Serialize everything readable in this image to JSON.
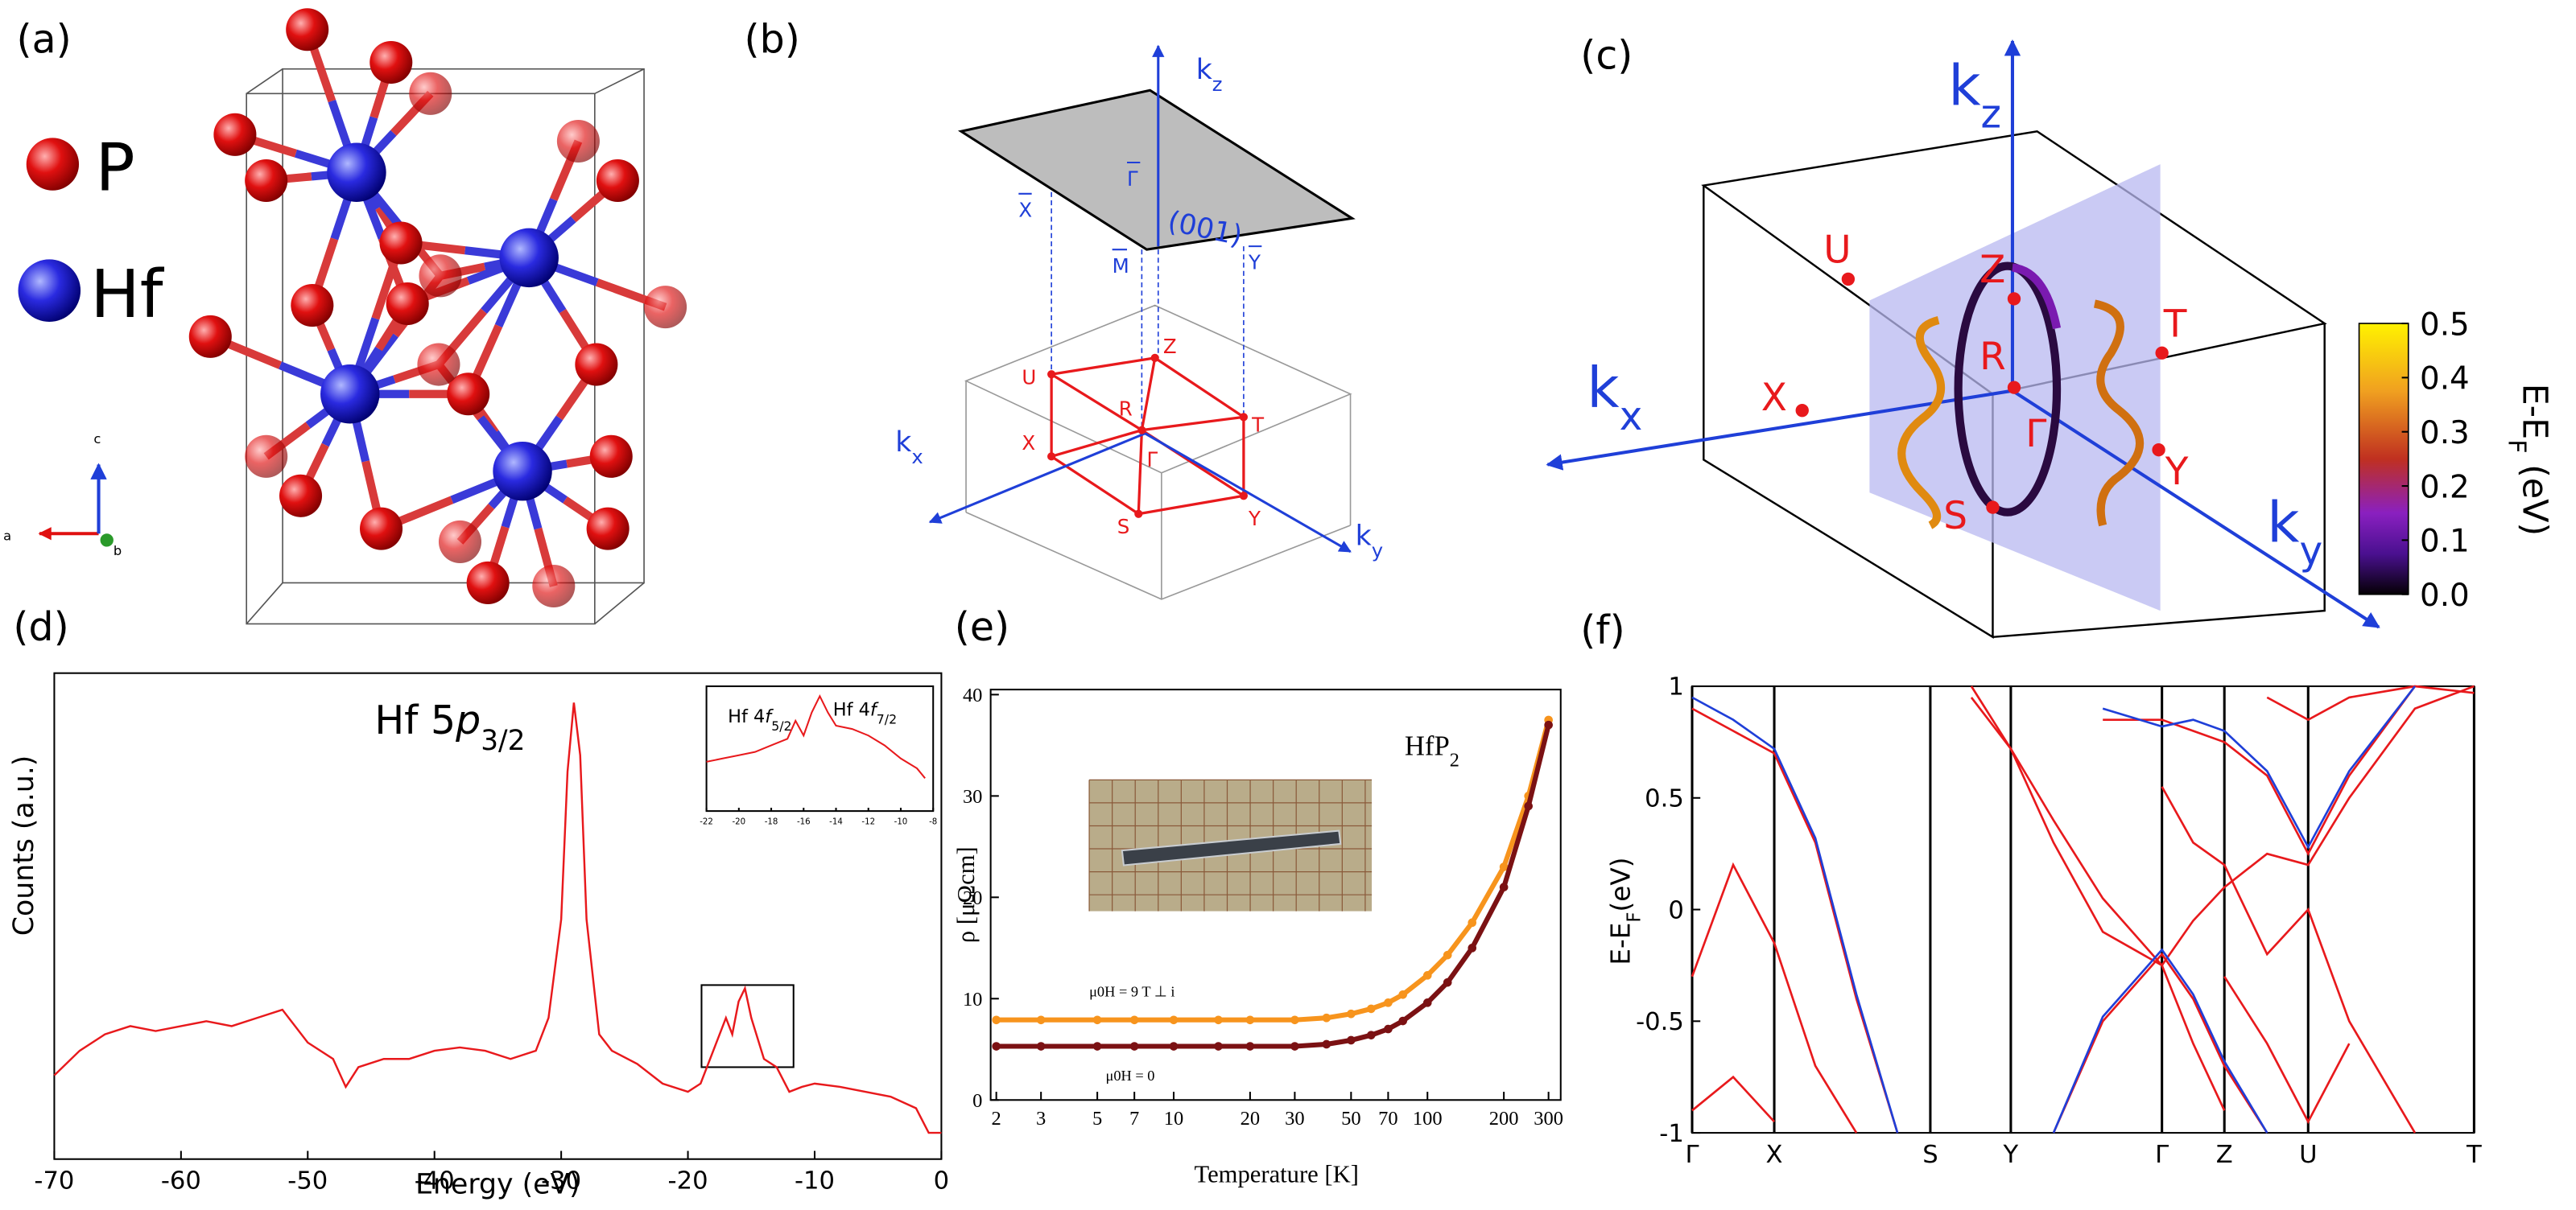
{
  "panel_labels": [
    "(a)",
    "(b)",
    "(c)",
    "(d)",
    "(e)",
    "(f)"
  ],
  "structure": {
    "legend": [
      "P",
      "Hf"
    ],
    "axes": [
      "a",
      "b",
      "c"
    ]
  },
  "brillouin_zone": {
    "surface": "(001)",
    "surface_points": [
      "Γ",
      "X",
      "M",
      "Y"
    ],
    "points": [
      "Z",
      "U",
      "R",
      "X",
      "T",
      "Γ",
      "S",
      "Y"
    ],
    "axes": [
      [
        "k",
        "x"
      ],
      [
        "k",
        "y"
      ],
      [
        "k",
        "z"
      ]
    ]
  },
  "nodal_line": {
    "points": [
      "Z",
      "U",
      "T",
      "R",
      "X",
      "Γ",
      "Y",
      "S"
    ],
    "axes": [
      [
        "k",
        "x"
      ],
      [
        "k",
        "y"
      ],
      [
        "k",
        "z"
      ]
    ],
    "colorbar": {
      "label": [
        "E-E",
        "F",
        " (eV)"
      ],
      "lim": [
        0,
        0.5
      ],
      "ticks": [
        {
          "value": 0,
          "label": "0.0"
        },
        0.1,
        0.2,
        0.3,
        0.4,
        0.5
      ]
    }
  },
  "chart_data": [
    {
      "type": "line",
      "annotation": [
        "Hf 5",
        "p",
        "3/2"
      ],
      "xlabel": "Energy (eV)",
      "ylabel": "Counts (a.u.)",
      "xlim": [
        -70,
        0
      ],
      "xticks": [
        -70,
        -60,
        -50,
        -40,
        -30,
        -20,
        -10,
        0
      ],
      "ylim": [
        0,
        296
      ],
      "x": [
        -70,
        -68,
        -66,
        -64,
        -62,
        -60,
        -58,
        -56,
        -54,
        -52,
        -50,
        -48,
        -47,
        -46,
        -44,
        -42,
        -40,
        -38,
        -36,
        -34,
        -32,
        -31,
        -30,
        -29.5,
        -29,
        -28.5,
        -28,
        -27,
        -26,
        -24,
        -22,
        -20,
        -19,
        -18,
        -17,
        -16.5,
        -16,
        -15.5,
        -15,
        -14,
        -13,
        -12,
        -11,
        -10,
        -8,
        -6,
        -4,
        -2,
        -1,
        0
      ],
      "series": [
        {
          "color": "#e8191c",
          "values": [
            51,
            66,
            76,
            81,
            78,
            81,
            84,
            81,
            86,
            91,
            71,
            61,
            44,
            56,
            61,
            61,
            66,
            68,
            66,
            61,
            66,
            86,
            146,
            236,
            278,
            246,
            146,
            76,
            66,
            58,
            46,
            41,
            46,
            66,
            86,
            76,
            96,
            104,
            86,
            61,
            56,
            41,
            44,
            46,
            44,
            41,
            38,
            31,
            16,
            16
          ]
        }
      ]
    },
    {
      "type": "line",
      "annotations": [
        [
          "Hf 4",
          "f",
          "5/2"
        ],
        [
          "Hf 4",
          "f",
          "7/2"
        ]
      ],
      "xlim": [
        -22,
        -8
      ],
      "xticks": [
        -22,
        -20,
        -18,
        -16,
        -14,
        -12,
        -10,
        -8
      ],
      "ylim": [
        0,
        76
      ],
      "x": [
        -22,
        -21,
        -20,
        -19,
        -18,
        -17,
        -16.5,
        -16,
        -15.5,
        -15,
        -14.5,
        -14,
        -13,
        -12,
        -11,
        -10,
        -9,
        -8.5
      ],
      "series": [
        {
          "color": "#e8191c",
          "values": [
            30,
            32,
            34,
            36,
            40,
            44,
            55,
            46,
            60,
            70,
            60,
            52,
            50,
            46,
            40,
            32,
            26,
            20
          ]
        }
      ]
    },
    {
      "type": "line",
      "markers": true,
      "title": [
        "HfP",
        "2"
      ],
      "xlabel": "Temperature [K]",
      "ylabel": "ρ [μΩcm]",
      "xscale": "log",
      "xlim": [
        1.9,
        335
      ],
      "xticks": [
        2,
        3,
        5,
        7,
        10,
        20,
        30,
        50,
        70,
        100,
        200,
        300
      ],
      "ylim": [
        0,
        40.5
      ],
      "yticks": [
        0,
        10,
        20,
        30,
        40
      ],
      "x": [
        2,
        3,
        5,
        7,
        10,
        15,
        20,
        30,
        40,
        50,
        60,
        70,
        80,
        100,
        120,
        150,
        200,
        250,
        300
      ],
      "series": [
        {
          "name": "μ0H = 9 T ⊥ i",
          "color": "#f7941d",
          "values": [
            7.9,
            7.9,
            7.9,
            7.9,
            7.9,
            7.9,
            7.9,
            7.9,
            8.1,
            8.5,
            9.0,
            9.6,
            10.4,
            12.3,
            14.3,
            17.5,
            23,
            30,
            37.5
          ]
        },
        {
          "name": "μ0H = 0",
          "color": "#7b1113",
          "values": [
            5.3,
            5.3,
            5.3,
            5.3,
            5.3,
            5.3,
            5.3,
            5.3,
            5.5,
            5.9,
            6.4,
            7.0,
            7.8,
            9.6,
            11.6,
            15,
            21,
            29,
            37
          ]
        }
      ]
    },
    {
      "type": "line",
      "ylabel": [
        "E-E",
        "F",
        "(eV)"
      ],
      "xgrid": true,
      "xlim": [
        0,
        4.76
      ],
      "xticks": [
        {
          "value": 0,
          "label": "Γ"
        },
        {
          "value": 0.5,
          "label": "X"
        },
        {
          "value": 1.45,
          "label": "S"
        },
        {
          "value": 1.94,
          "label": "Y"
        },
        {
          "value": 2.86,
          "label": "Γ"
        },
        {
          "value": 3.24,
          "label": "Z"
        },
        {
          "value": 3.75,
          "label": "U"
        },
        {
          "value": 4.76,
          "label": "T"
        }
      ],
      "ylim": [
        -1,
        1
      ],
      "yticks": [
        -1,
        -0.5,
        0,
        0.5,
        1
      ],
      "x": [
        0,
        0.25,
        0.5,
        0.75,
        1.0,
        1.25,
        1.45,
        1.7,
        1.94,
        2.2,
        2.5,
        2.86,
        3.05,
        3.24,
        3.5,
        3.75,
        4.0,
        4.4,
        4.76
      ],
      "series": [
        {
          "color": "#e8191c",
          "values": [
            -0.3,
            0.2,
            -0.15,
            -0.7,
            -1,
            null,
            null,
            null,
            null,
            null,
            null,
            null,
            null,
            null,
            null,
            null,
            null,
            null,
            null
          ]
        },
        {
          "color": "#e8191c",
          "values": [
            0.9,
            0.8,
            0.7,
            0.3,
            -0.4,
            -1,
            null,
            null,
            null,
            null,
            null,
            null,
            null,
            null,
            null,
            null,
            null,
            null,
            null
          ]
        },
        {
          "color": "#e8191c",
          "values": [
            -0.9,
            -0.75,
            -0.95,
            null,
            null,
            null,
            null,
            null,
            null,
            null,
            null,
            null,
            null,
            null,
            null,
            null,
            null,
            null,
            null
          ]
        },
        {
          "color": "#e8191c",
          "values": [
            null,
            null,
            null,
            null,
            null,
            null,
            null,
            1.0,
            0.72,
            0.3,
            -0.1,
            -0.25,
            -0.05,
            0.1,
            0.25,
            0.2,
            0.5,
            0.9,
            1.0
          ]
        },
        {
          "color": "#e8191c",
          "values": [
            null,
            null,
            null,
            null,
            null,
            null,
            null,
            0.95,
            0.72,
            0.4,
            0.05,
            -0.25,
            -0.6,
            -0.9,
            null,
            null,
            null,
            null,
            null
          ]
        },
        {
          "color": "#e8191c",
          "values": [
            null,
            null,
            null,
            null,
            null,
            null,
            null,
            null,
            null,
            -1,
            -0.5,
            -0.2,
            -0.4,
            -0.7,
            -1,
            null,
            null,
            null,
            null
          ]
        },
        {
          "color": "#e8191c",
          "values": [
            null,
            null,
            null,
            null,
            null,
            null,
            null,
            null,
            null,
            null,
            0.85,
            0.85,
            0.8,
            0.75,
            0.6,
            0.25,
            0.6,
            1.0,
            null
          ]
        },
        {
          "color": "#e8191c",
          "values": [
            null,
            null,
            null,
            null,
            null,
            null,
            null,
            null,
            null,
            null,
            null,
            0.55,
            0.3,
            0.2,
            -0.2,
            0.0,
            -0.5,
            -1,
            null
          ]
        },
        {
          "color": "#e8191c",
          "values": [
            null,
            null,
            null,
            null,
            null,
            null,
            null,
            null,
            null,
            null,
            null,
            null,
            null,
            -0.3,
            -0.6,
            -0.95,
            -0.6,
            null,
            null
          ]
        },
        {
          "color": "#e8191c",
          "values": [
            null,
            null,
            null,
            null,
            null,
            null,
            null,
            null,
            null,
            null,
            null,
            null,
            null,
            null,
            0.95,
            0.85,
            0.95,
            1.0,
            0.97
          ]
        },
        {
          "color": "#1f3fd8",
          "values": [
            0.95,
            0.85,
            0.72,
            0.32,
            -0.38,
            -1,
            null,
            null,
            null,
            null,
            null,
            null,
            null,
            null,
            null,
            null,
            null,
            null,
            null
          ]
        },
        {
          "color": "#1f3fd8",
          "values": [
            null,
            null,
            null,
            null,
            null,
            null,
            null,
            null,
            null,
            null,
            0.9,
            0.82,
            0.85,
            0.8,
            0.62,
            0.28,
            0.62,
            1.0,
            null
          ]
        },
        {
          "color": "#1f3fd8",
          "values": [
            null,
            null,
            null,
            null,
            null,
            null,
            null,
            null,
            null,
            -1,
            -0.48,
            -0.18,
            -0.38,
            -0.68,
            -1,
            null,
            null,
            null,
            null
          ]
        }
      ]
    }
  ]
}
